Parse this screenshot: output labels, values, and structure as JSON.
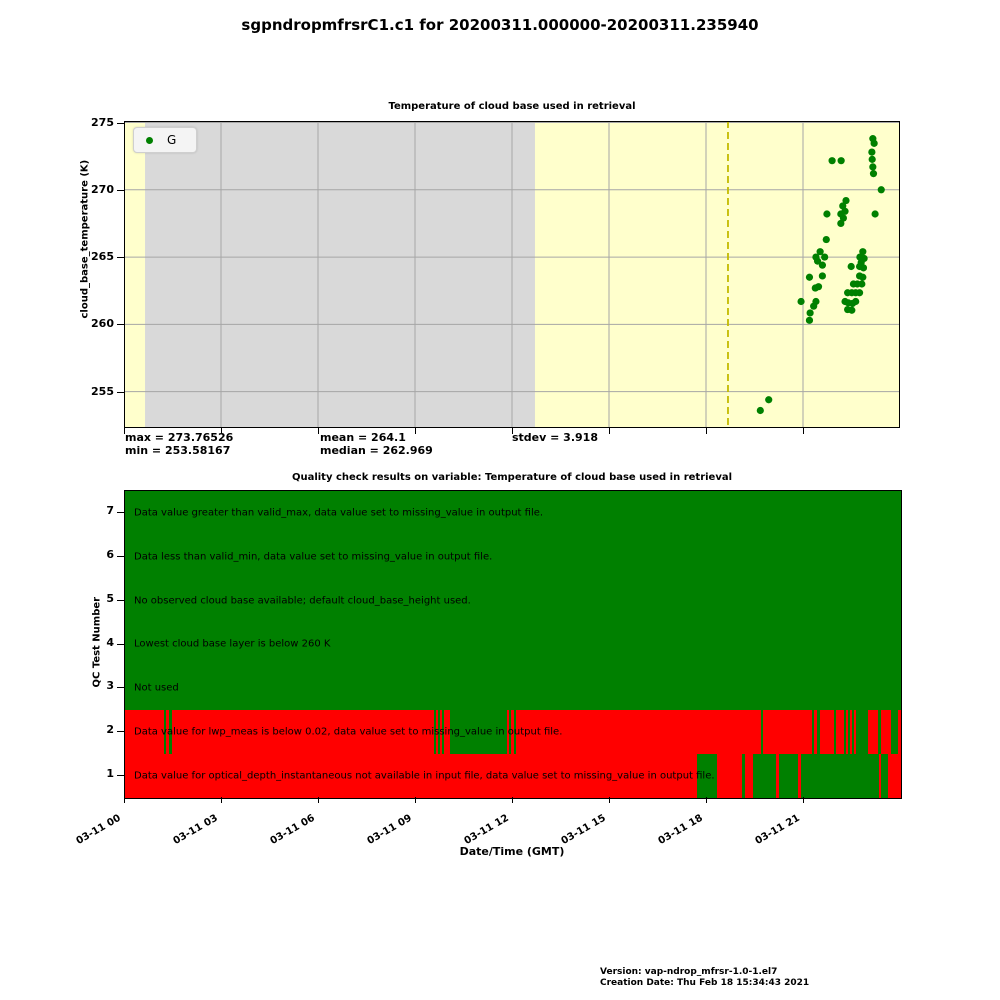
{
  "page_title": "sgpndropmfrsrC1.c1 for 20200311.000000-20200311.235940",
  "footer": {
    "version": "Version: vap-ndrop_mfrsr-1.0-1.el7",
    "creation_date": "Creation Date: Thu Feb 18 15:34:43 2021"
  },
  "chart_data": [
    {
      "type": "scatter",
      "title": "Temperature of cloud base used in retrieval",
      "ylabel": "cloud_base_temperature (K)",
      "legend": [
        {
          "label": "G",
          "color": "#008000"
        }
      ],
      "ylim": [
        252.3,
        275.11
      ],
      "yticks": [
        255,
        260,
        265,
        270,
        275
      ],
      "x_axis_hours": [
        0,
        24
      ],
      "xtick_hours": [
        0,
        3,
        6,
        9,
        12,
        15,
        18,
        21
      ],
      "grid": true,
      "colors": {
        "background_yellow": "#ffffcc",
        "background_gray": "#d9d9d9",
        "grid": "#a6a6a6",
        "marker": "#008000",
        "vline": "#c3bb00"
      },
      "gray_band_hours": [
        0.65,
        12.71
      ],
      "vline_hour": 18.68,
      "stats": {
        "max": "max = 273.76526",
        "min": "min = 253.58167",
        "mean": "mean = 264.1",
        "median": "median = 262.969",
        "stdev": "stdev = 3.918"
      },
      "points": [
        [
          19.68,
          253.6
        ],
        [
          19.94,
          254.4
        ],
        [
          20.94,
          261.7
        ],
        [
          21.2,
          260.3
        ],
        [
          21.22,
          260.85
        ],
        [
          21.2,
          263.5
        ],
        [
          21.33,
          261.35
        ],
        [
          21.38,
          262.7
        ],
        [
          21.4,
          261.7
        ],
        [
          21.4,
          265.0
        ],
        [
          21.45,
          264.7
        ],
        [
          21.48,
          262.8
        ],
        [
          21.53,
          265.4
        ],
        [
          21.6,
          264.4
        ],
        [
          21.6,
          263.6
        ],
        [
          21.67,
          265.0
        ],
        [
          21.72,
          266.3
        ],
        [
          21.74,
          268.2
        ],
        [
          21.9,
          272.16
        ],
        [
          22.17,
          268.2
        ],
        [
          22.17,
          267.5
        ],
        [
          22.18,
          272.16
        ],
        [
          22.23,
          268.8
        ],
        [
          22.25,
          267.9
        ],
        [
          22.3,
          268.4
        ],
        [
          22.3,
          261.7
        ],
        [
          22.33,
          269.2
        ],
        [
          22.38,
          262.35
        ],
        [
          22.38,
          261.1
        ],
        [
          22.4,
          261.6
        ],
        [
          22.49,
          264.3
        ],
        [
          22.51,
          262.35
        ],
        [
          22.51,
          261.05
        ],
        [
          22.53,
          261.55
        ],
        [
          22.56,
          263.0
        ],
        [
          22.63,
          262.35
        ],
        [
          22.63,
          261.7
        ],
        [
          22.68,
          263.0
        ],
        [
          22.75,
          264.3
        ],
        [
          22.75,
          263.6
        ],
        [
          22.75,
          262.35
        ],
        [
          22.76,
          265.0
        ],
        [
          22.8,
          264.6
        ],
        [
          22.82,
          263.0
        ],
        [
          22.85,
          265.4
        ],
        [
          22.85,
          263.5
        ],
        [
          22.87,
          264.2
        ],
        [
          22.89,
          264.9
        ],
        [
          23.13,
          272.8
        ],
        [
          23.14,
          272.26
        ],
        [
          23.16,
          273.8
        ],
        [
          23.16,
          271.7
        ],
        [
          23.18,
          271.2
        ],
        [
          23.2,
          273.45
        ],
        [
          23.23,
          268.2
        ],
        [
          23.42,
          270.0
        ]
      ]
    },
    {
      "type": "qc-heatmap",
      "title": "Quality check results on variable: Temperature of cloud base used in retrieval",
      "ylabel": "QC Test Number",
      "xlabel": "Date/Time (GMT)",
      "xtick_labels": [
        "03-11 00",
        "03-11 03",
        "03-11 06",
        "03-11 09",
        "03-11 12",
        "03-11 15",
        "03-11 18",
        "03-11 21"
      ],
      "xtick_hours": [
        0,
        3,
        6,
        9,
        12,
        15,
        18,
        21
      ],
      "colors": {
        "pass": "#008000",
        "fail": "#ff0000"
      },
      "rows": [
        {
          "test": 7,
          "label": "Data value greater than valid_max, data value set to missing_value in output file.",
          "base": "pass",
          "green_segments_hours": []
        },
        {
          "test": 6,
          "label": "Data less than valid_min, data value set to missing_value in output file.",
          "base": "pass",
          "green_segments_hours": []
        },
        {
          "test": 5,
          "label": "No observed cloud base available; default cloud_base_height used.",
          "base": "pass",
          "green_segments_hours": []
        },
        {
          "test": 4,
          "label": "Lowest cloud base layer is below 260 K",
          "base": "pass",
          "green_segments_hours": []
        },
        {
          "test": 3,
          "label": "Not used",
          "base": "pass",
          "green_segments_hours": []
        },
        {
          "test": 2,
          "label": "Data value for lwp_meas is below 0.02, data value set to missing_value in output file.",
          "base": "fail",
          "green_segments_hours": [
            [
              1.19,
              1.26
            ],
            [
              1.36,
              1.46
            ],
            [
              9.55,
              9.63
            ],
            [
              9.68,
              9.74
            ],
            [
              9.8,
              9.86
            ],
            [
              10.06,
              11.82
            ],
            [
              11.89,
              11.95
            ],
            [
              12.02,
              12.1
            ],
            [
              19.68,
              19.73
            ],
            [
              21.24,
              21.32
            ],
            [
              21.41,
              21.49
            ],
            [
              21.92,
              22.0
            ],
            [
              22.23,
              22.31
            ],
            [
              22.35,
              22.43
            ],
            [
              22.48,
              22.56
            ],
            [
              22.6,
              22.98
            ],
            [
              23.29,
              23.38
            ],
            [
              23.69,
              23.9
            ]
          ]
        },
        {
          "test": 1,
          "label": "Data value  for optical_depth_instantaneous not available in input file, data value set to missing_value in output file.",
          "base": "fail",
          "green_segments_hours": [
            [
              17.7,
              18.3
            ],
            [
              19.09,
              19.19
            ],
            [
              19.43,
              20.14
            ],
            [
              20.21,
              20.8
            ],
            [
              20.9,
              23.33
            ],
            [
              23.38,
              23.58
            ]
          ]
        }
      ]
    }
  ]
}
